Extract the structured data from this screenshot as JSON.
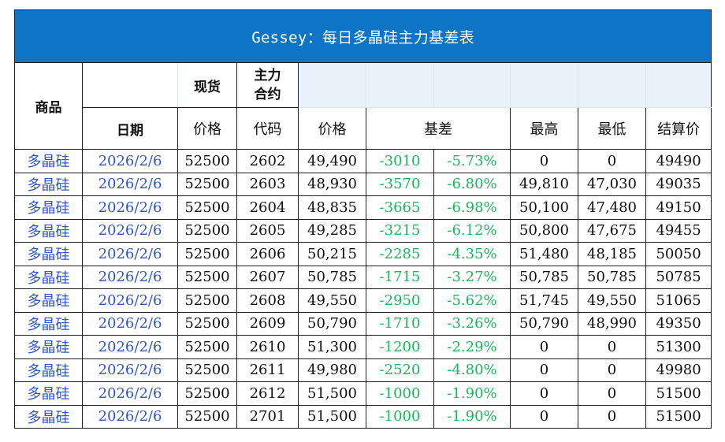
{
  "title": "Gessey：每日多晶硅主力基差表",
  "header": {
    "product": "商品",
    "spot": "现货",
    "main_contract": "主力\n合约",
    "date": "日期",
    "price": "价格",
    "code": "代码",
    "futures_price": "价格",
    "basis": "基差",
    "high": "最高",
    "low": "最低",
    "settle": "结算价"
  },
  "rows": [
    {
      "name": "多晶硅",
      "date": "2026/2/6",
      "spot": "52500",
      "code": "2602",
      "price": "49,490",
      "basis": "-3010",
      "basis_pct": "-5.73%",
      "high": "0",
      "low": "0",
      "settle": "49490"
    },
    {
      "name": "多晶硅",
      "date": "2026/2/6",
      "spot": "52500",
      "code": "2603",
      "price": "48,930",
      "basis": "-3570",
      "basis_pct": "-6.80%",
      "high": "49,810",
      "low": "47,030",
      "settle": "49035"
    },
    {
      "name": "多晶硅",
      "date": "2026/2/6",
      "spot": "52500",
      "code": "2604",
      "price": "48,835",
      "basis": "-3665",
      "basis_pct": "-6.98%",
      "high": "50,100",
      "low": "47,480",
      "settle": "49150"
    },
    {
      "name": "多晶硅",
      "date": "2026/2/6",
      "spot": "52500",
      "code": "2605",
      "price": "49,285",
      "basis": "-3215",
      "basis_pct": "-6.12%",
      "high": "50,800",
      "low": "47,675",
      "settle": "49455"
    },
    {
      "name": "多晶硅",
      "date": "2026/2/6",
      "spot": "52500",
      "code": "2606",
      "price": "50,215",
      "basis": "-2285",
      "basis_pct": "-4.35%",
      "high": "51,480",
      "low": "48,185",
      "settle": "50050"
    },
    {
      "name": "多晶硅",
      "date": "2026/2/6",
      "spot": "52500",
      "code": "2607",
      "price": "50,785",
      "basis": "-1715",
      "basis_pct": "-3.27%",
      "high": "50,785",
      "low": "50,785",
      "settle": "50785"
    },
    {
      "name": "多晶硅",
      "date": "2026/2/6",
      "spot": "52500",
      "code": "2608",
      "price": "49,550",
      "basis": "-2950",
      "basis_pct": "-5.62%",
      "high": "51,745",
      "low": "49,550",
      "settle": "51065"
    },
    {
      "name": "多晶硅",
      "date": "2026/2/6",
      "spot": "52500",
      "code": "2609",
      "price": "50,790",
      "basis": "-1710",
      "basis_pct": "-3.26%",
      "high": "50,790",
      "low": "48,990",
      "settle": "49350"
    },
    {
      "name": "多晶硅",
      "date": "2026/2/6",
      "spot": "52500",
      "code": "2610",
      "price": "51,300",
      "basis": "-1200",
      "basis_pct": "-2.29%",
      "high": "0",
      "low": "0",
      "settle": "51300"
    },
    {
      "name": "多晶硅",
      "date": "2026/2/6",
      "spot": "52500",
      "code": "2611",
      "price": "49,980",
      "basis": "-2520",
      "basis_pct": "-4.80%",
      "high": "0",
      "low": "0",
      "settle": "49980"
    },
    {
      "name": "多晶硅",
      "date": "2026/2/6",
      "spot": "52500",
      "code": "2612",
      "price": "51,500",
      "basis": "-1000",
      "basis_pct": "-1.90%",
      "high": "0",
      "low": "0",
      "settle": "51500"
    },
    {
      "name": "多晶硅",
      "date": "2026/2/6",
      "spot": "52500",
      "code": "2701",
      "price": "51,500",
      "basis": "-1000",
      "basis_pct": "-1.90%",
      "high": "0",
      "low": "0",
      "settle": "51500"
    }
  ],
  "colors": {
    "title_bg": "#0e74c6",
    "blue_text": "#2f56c9",
    "green_text": "#16b85a"
  }
}
